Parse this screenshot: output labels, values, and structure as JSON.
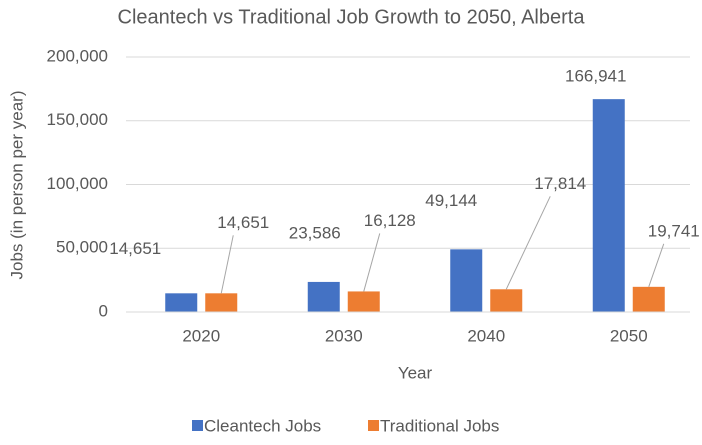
{
  "chart_data": {
    "type": "bar",
    "title": "Cleantech vs Traditional Job Growth to 2050, Alberta",
    "x_label": "Year",
    "y_label": "Jobs (in person per year)",
    "categories": [
      "2020",
      "2030",
      "2040",
      "2050"
    ],
    "series": [
      {
        "name": "Cleantech Jobs",
        "color": "#4472c4",
        "values": [
          14651,
          23586,
          49144,
          166941
        ],
        "value_labels": [
          "14,651",
          "23,586",
          "49,144",
          "166,941"
        ]
      },
      {
        "name": "Traditional Jobs",
        "color": "#ed7d31",
        "values": [
          14651,
          16128,
          17814,
          19741
        ],
        "value_labels": [
          "14,651",
          "16,128",
          "17,814",
          "19,741"
        ]
      }
    ],
    "ylim": [
      0,
      200000
    ],
    "yticks": [
      0,
      {
        "value": 50000,
        "label": "50,000"
      },
      {
        "value": 100000,
        "label": "100,000"
      },
      {
        "value": 150000,
        "label": "150,000"
      },
      {
        "value": 200000,
        "label": "200,000"
      }
    ],
    "grid": true,
    "legend": "bottom"
  }
}
